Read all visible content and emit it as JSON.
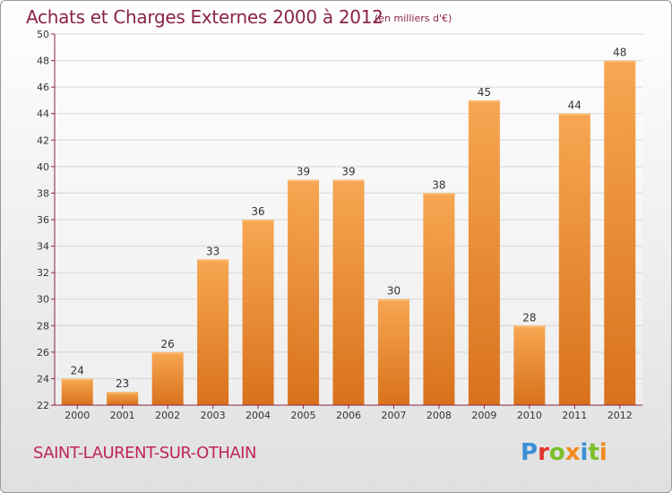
{
  "header": {
    "title": "Achats et Charges Externes 2000 à 2012",
    "subtitle": "(en milliers d'€)"
  },
  "footer": {
    "commune": "SAINT-LAURENT-SUR-OTHAIN",
    "brand": "Proxiti",
    "brand_letters": [
      {
        "char": "P",
        "color": "#3b8fd6"
      },
      {
        "char": "r",
        "color": "#e2342a"
      },
      {
        "char": "o",
        "color": "#7cbf2a"
      },
      {
        "char": "x",
        "color": "#f08a1c"
      },
      {
        "char": "i",
        "color": "#3b8fd6"
      },
      {
        "char": "t",
        "color": "#7cbf2a"
      },
      {
        "char": "i",
        "color": "#f08a1c"
      }
    ]
  },
  "chart_data": {
    "type": "bar",
    "categories": [
      "2000",
      "2001",
      "2002",
      "2003",
      "2004",
      "2005",
      "2006",
      "2007",
      "2008",
      "2009",
      "2010",
      "2011",
      "2012"
    ],
    "values": [
      24,
      23,
      26,
      33,
      36,
      39,
      39,
      30,
      38,
      45,
      28,
      44,
      48
    ],
    "ylim": [
      22,
      50
    ],
    "yticks": [
      22,
      24,
      26,
      28,
      30,
      32,
      34,
      36,
      38,
      40,
      42,
      44,
      46,
      48,
      50
    ],
    "grid": true,
    "colors": {
      "bar_light": "#f7a752",
      "bar_dark": "#d9711c",
      "axis": "#8a2348",
      "grid": "#d6d6d6",
      "text": "#333333"
    }
  }
}
